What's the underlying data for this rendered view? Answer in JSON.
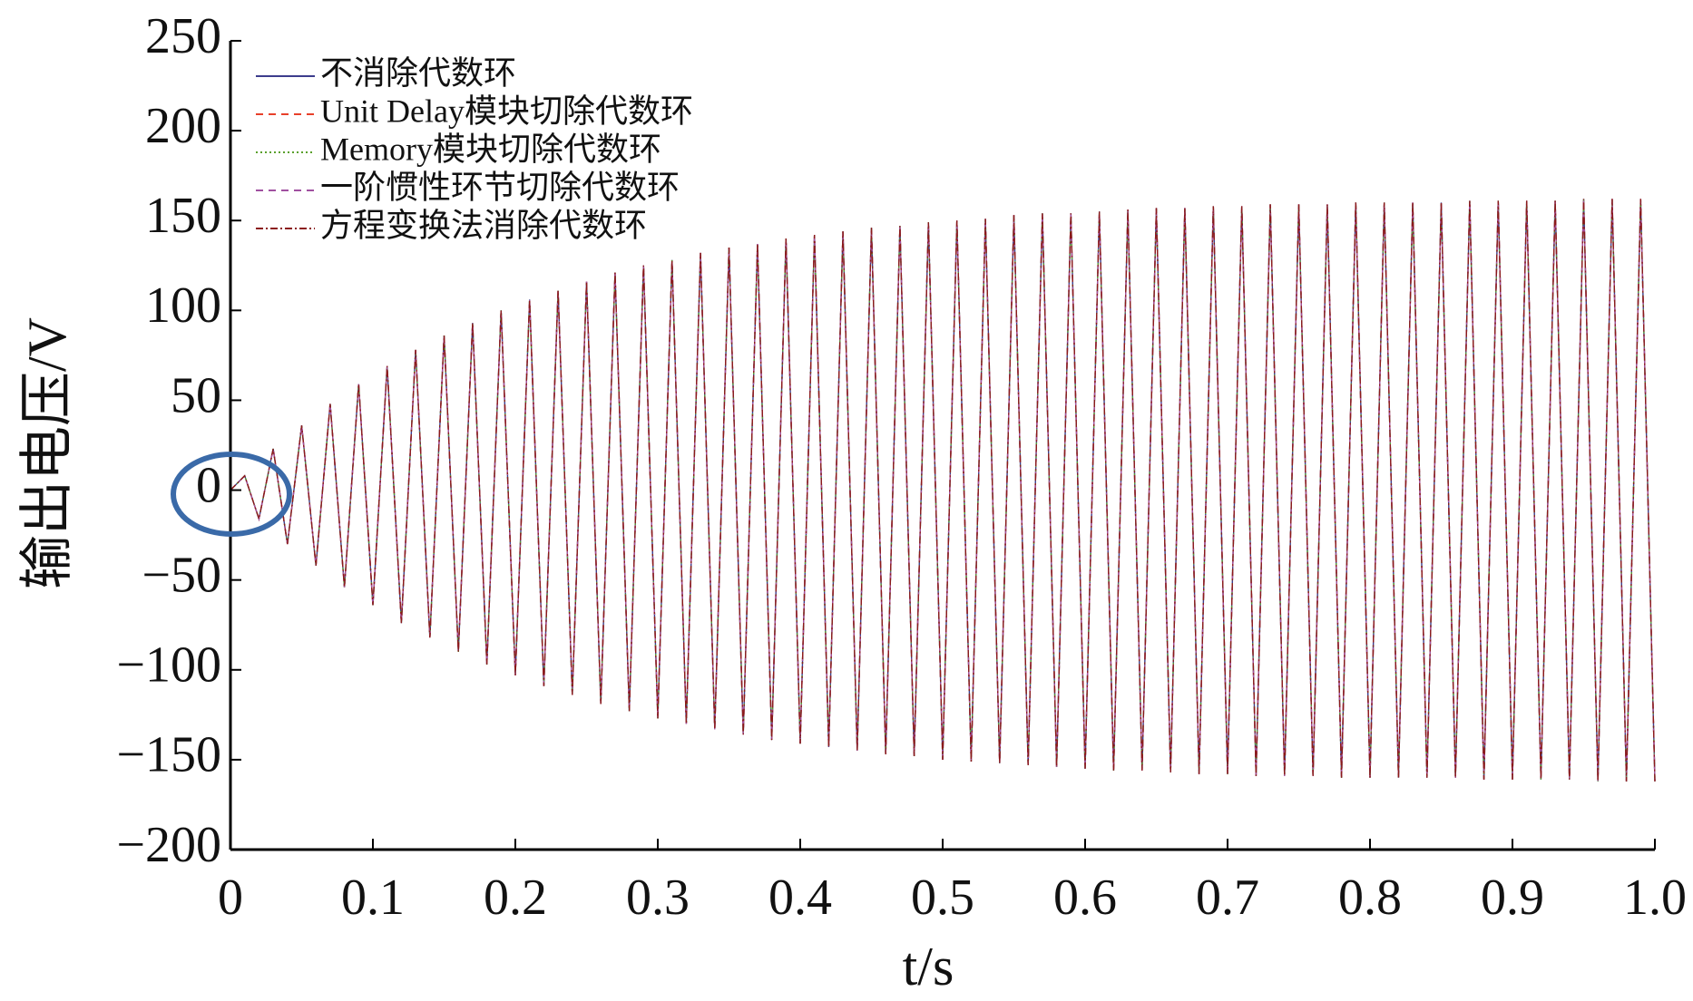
{
  "chart_data": {
    "type": "line",
    "xlabel": "t/s",
    "ylabel": "输出电压/V",
    "xlim": [
      0,
      1
    ],
    "ylim": [
      -200,
      250
    ],
    "xticks": [
      0,
      0.1,
      0.2,
      0.3,
      0.4,
      0.5,
      0.6,
      0.7,
      0.8,
      0.9,
      {
        "value": 1,
        "label": "1.0"
      }
    ],
    "yticks": [
      {
        "value": -200,
        "label": "−200"
      },
      {
        "value": -150,
        "label": "−150"
      },
      {
        "value": -100,
        "label": "−100"
      },
      {
        "value": -50,
        "label": "−50"
      },
      0,
      50,
      100,
      150,
      200,
      250
    ],
    "x": [
      0,
      0.01,
      0.02,
      0.03,
      0.04,
      0.05,
      0.06,
      0.07,
      0.08,
      0.09,
      0.1,
      0.11,
      0.12,
      0.13,
      0.14,
      0.15,
      0.16,
      0.17,
      0.18,
      0.19,
      0.2,
      0.21,
      0.22,
      0.23,
      0.24,
      0.25,
      0.26,
      0.27,
      0.28,
      0.29,
      0.3,
      0.31,
      0.32,
      0.33,
      0.34,
      0.35,
      0.36,
      0.37,
      0.38,
      0.39,
      0.4,
      0.41,
      0.42,
      0.43,
      0.44,
      0.45,
      0.46,
      0.47,
      0.48,
      0.49,
      0.5,
      0.51,
      0.52,
      0.53,
      0.54,
      0.55,
      0.56,
      0.57,
      0.58,
      0.59,
      0.6,
      0.61,
      0.62,
      0.63,
      0.64,
      0.65,
      0.66,
      0.67,
      0.68,
      0.69,
      0.7,
      0.71,
      0.72,
      0.73,
      0.74,
      0.75,
      0.76,
      0.77,
      0.78,
      0.79,
      0.8,
      0.81,
      0.82,
      0.83,
      0.84,
      0.85,
      0.86,
      0.87,
      0.88,
      0.89,
      0.9,
      0.91,
      0.92,
      0.93,
      0.94,
      0.95,
      0.96,
      0.97,
      0.98,
      0.99,
      1
    ],
    "series": [
      {
        "name": "不消除代数环",
        "color": "#3c3c8c",
        "dash": "none",
        "values": [
          0,
          8,
          -16,
          23,
          -30,
          36,
          -42,
          48,
          -54,
          59,
          -64,
          69,
          -74,
          78,
          -82,
          86,
          -90,
          93,
          -97,
          100,
          -103,
          106,
          -109,
          111,
          -114,
          116,
          -119,
          121,
          -123,
          125,
          -127,
          128,
          -130,
          132,
          -133,
          135,
          -136,
          137,
          -139,
          140,
          -141,
          142,
          -143,
          144,
          -145,
          146,
          -147,
          147,
          -148,
          149,
          -150,
          150,
          -151,
          151,
          -152,
          153,
          -153,
          154,
          -154,
          154,
          -155,
          155,
          -156,
          156,
          -156,
          157,
          -157,
          157,
          -158,
          158,
          -158,
          158,
          -159,
          159,
          -159,
          159,
          -159,
          159,
          -160,
          160,
          -160,
          160,
          -160,
          160,
          -160,
          160,
          -160,
          161,
          -161,
          161,
          -161,
          161,
          -161,
          161,
          -161,
          162,
          -162,
          162,
          -162,
          162,
          -162
        ]
      },
      {
        "name": "Unit Delay模块切除代数环",
        "color": "#e8402a",
        "dash": "8 6",
        "values": [
          0,
          8,
          -16,
          23,
          -30,
          36,
          -42,
          48,
          -54,
          59,
          -64,
          69,
          -74,
          78,
          -82,
          86,
          -90,
          93,
          -97,
          100,
          -103,
          106,
          -109,
          111,
          -114,
          116,
          -119,
          121,
          -123,
          125,
          -127,
          128,
          -130,
          132,
          -133,
          135,
          -136,
          137,
          -139,
          140,
          -141,
          142,
          -143,
          144,
          -145,
          146,
          -147,
          147,
          -148,
          149,
          -150,
          150,
          -151,
          151,
          -152,
          153,
          -153,
          154,
          -154,
          154,
          -155,
          155,
          -156,
          156,
          -156,
          157,
          -157,
          157,
          -158,
          158,
          -158,
          158,
          -159,
          159,
          -159,
          159,
          -159,
          159,
          -160,
          160,
          -160,
          160,
          -160,
          160,
          -160,
          160,
          -160,
          161,
          -161,
          161,
          -161,
          161,
          -161,
          161,
          -161,
          162,
          -162,
          162,
          -162,
          162,
          -162
        ]
      },
      {
        "name": "Memory模块切除代数环",
        "color": "#5aa02c",
        "dash": "2 3",
        "values": [
          0,
          8,
          -16,
          23,
          -30,
          36,
          -42,
          48,
          -54,
          59,
          -64,
          69,
          -74,
          78,
          -82,
          86,
          -90,
          93,
          -97,
          100,
          -103,
          106,
          -109,
          111,
          -114,
          116,
          -119,
          121,
          -123,
          125,
          -127,
          128,
          -130,
          132,
          -133,
          135,
          -136,
          137,
          -139,
          140,
          -141,
          142,
          -143,
          144,
          -145,
          146,
          -147,
          147,
          -148,
          149,
          -150,
          150,
          -151,
          151,
          -152,
          153,
          -153,
          154,
          -154,
          154,
          -155,
          155,
          -156,
          156,
          -156,
          157,
          -157,
          157,
          -158,
          158,
          -158,
          158,
          -159,
          159,
          -159,
          159,
          -159,
          159,
          -160,
          160,
          -160,
          160,
          -160,
          160,
          -160,
          160,
          -160,
          161,
          -161,
          161,
          -161,
          161,
          -161,
          161,
          -161,
          162,
          -162,
          162,
          -162,
          162,
          -162
        ]
      },
      {
        "name": "一阶惯性环节切除代数环",
        "color": "#a050a0",
        "dash": "8 6",
        "values": [
          0,
          8,
          -16,
          23,
          -30,
          36,
          -42,
          48,
          -54,
          59,
          -64,
          69,
          -74,
          78,
          -82,
          86,
          -90,
          93,
          -97,
          100,
          -103,
          106,
          -109,
          111,
          -114,
          116,
          -119,
          121,
          -123,
          125,
          -127,
          128,
          -130,
          132,
          -133,
          135,
          -136,
          137,
          -139,
          140,
          -141,
          142,
          -143,
          144,
          -145,
          146,
          -147,
          147,
          -148,
          149,
          -150,
          150,
          -151,
          151,
          -152,
          153,
          -153,
          154,
          -154,
          154,
          -155,
          155,
          -156,
          156,
          -156,
          157,
          -157,
          157,
          -158,
          158,
          -158,
          158,
          -159,
          159,
          -159,
          159,
          -159,
          159,
          -160,
          160,
          -160,
          160,
          -160,
          160,
          -160,
          160,
          -160,
          161,
          -161,
          161,
          -161,
          161,
          -161,
          161,
          -161,
          162,
          -162,
          162,
          -162,
          162,
          -162
        ]
      },
      {
        "name": "方程变换法消除代数环",
        "color": "#8b1a1a",
        "dash": "8 3 2 3",
        "values": [
          0,
          8,
          -16,
          23,
          -30,
          36,
          -42,
          48,
          -54,
          59,
          -64,
          69,
          -74,
          78,
          -82,
          86,
          -90,
          93,
          -97,
          100,
          -103,
          106,
          -109,
          111,
          -114,
          116,
          -119,
          121,
          -123,
          125,
          -127,
          128,
          -130,
          132,
          -133,
          135,
          -136,
          137,
          -139,
          140,
          -141,
          142,
          -143,
          144,
          -145,
          146,
          -147,
          147,
          -148,
          149,
          -150,
          150,
          -151,
          151,
          -152,
          153,
          -153,
          154,
          -154,
          154,
          -155,
          155,
          -156,
          156,
          -156,
          157,
          -157,
          157,
          -158,
          158,
          -158,
          158,
          -159,
          159,
          -159,
          159,
          -159,
          159,
          -160,
          160,
          -160,
          160,
          -160,
          160,
          -160,
          160,
          -160,
          161,
          -161,
          161,
          -161,
          161,
          -161,
          161,
          -161,
          162,
          -162,
          162,
          -162,
          162,
          -162
        ]
      }
    ]
  }
}
